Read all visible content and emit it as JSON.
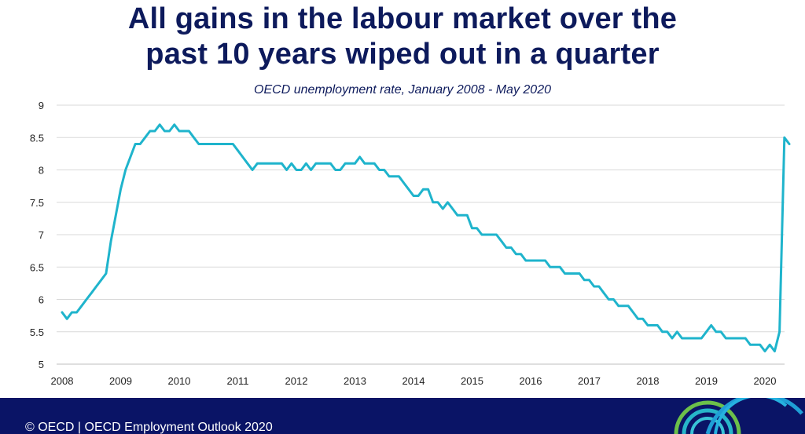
{
  "title_line1": "All gains in the labour market over the",
  "title_line2": "past 10 years wiped out in a quarter",
  "subtitle": "OECD unemployment rate, January 2008 - May 2020",
  "footer_text": "© OECD | OECD Employment Outlook 2020",
  "colors": {
    "line": "#1fb4cc",
    "title": "#0d1a5c",
    "footer_bg": "#0a1466",
    "grid": "#d9d9d9"
  },
  "chart_data": {
    "type": "line",
    "title": "All gains in the labour market over the past 10 years wiped out in a quarter",
    "subtitle": "OECD unemployment rate, January 2008 - May 2020",
    "xlabel": "",
    "ylabel": "",
    "x_range": [
      "2008-01",
      "2020-05"
    ],
    "x_ticks": [
      "2008",
      "2009",
      "2010",
      "2011",
      "2012",
      "2013",
      "2014",
      "2015",
      "2016",
      "2017",
      "2018",
      "2019",
      "2020"
    ],
    "y_ticks": [
      "5",
      "5.5",
      "6",
      "6.5",
      "7",
      "7.5",
      "8",
      "8.5",
      "9"
    ],
    "ylim": [
      5,
      9
    ],
    "grid": true,
    "legend": "none",
    "series": [
      {
        "values": [
          5.8,
          5.7,
          5.8,
          5.8,
          5.9,
          6.0,
          6.1,
          6.2,
          6.3,
          6.4,
          6.9,
          7.3,
          7.7,
          8.0,
          8.2,
          8.4,
          8.4,
          8.5,
          8.6,
          8.6,
          8.7,
          8.6,
          8.6,
          8.7,
          8.6,
          8.6,
          8.6,
          8.5,
          8.4,
          8.4,
          8.4,
          8.4,
          8.4,
          8.4,
          8.4,
          8.4,
          8.3,
          8.2,
          8.1,
          8.0,
          8.1,
          8.1,
          8.1,
          8.1,
          8.1,
          8.1,
          8.0,
          8.1,
          8.0,
          8.0,
          8.1,
          8.0,
          8.1,
          8.1,
          8.1,
          8.1,
          8.0,
          8.0,
          8.1,
          8.1,
          8.1,
          8.2,
          8.1,
          8.1,
          8.1,
          8.0,
          8.0,
          7.9,
          7.9,
          7.9,
          7.8,
          7.7,
          7.6,
          7.6,
          7.7,
          7.7,
          7.5,
          7.5,
          7.4,
          7.5,
          7.4,
          7.3,
          7.3,
          7.3,
          7.1,
          7.1,
          7.0,
          7.0,
          7.0,
          7.0,
          6.9,
          6.8,
          6.8,
          6.7,
          6.7,
          6.6,
          6.6,
          6.6,
          6.6,
          6.6,
          6.5,
          6.5,
          6.5,
          6.4,
          6.4,
          6.4,
          6.4,
          6.3,
          6.3,
          6.2,
          6.2,
          6.1,
          6.0,
          6.0,
          5.9,
          5.9,
          5.9,
          5.8,
          5.7,
          5.7,
          5.6,
          5.6,
          5.6,
          5.5,
          5.5,
          5.4,
          5.5,
          5.4,
          5.4,
          5.4,
          5.4,
          5.4,
          5.5,
          5.6,
          5.5,
          5.5,
          5.4,
          5.4,
          5.4,
          5.4,
          5.4,
          5.3,
          5.3,
          5.3,
          5.2,
          5.3,
          5.2,
          5.5,
          8.5,
          8.4
        ]
      }
    ]
  }
}
